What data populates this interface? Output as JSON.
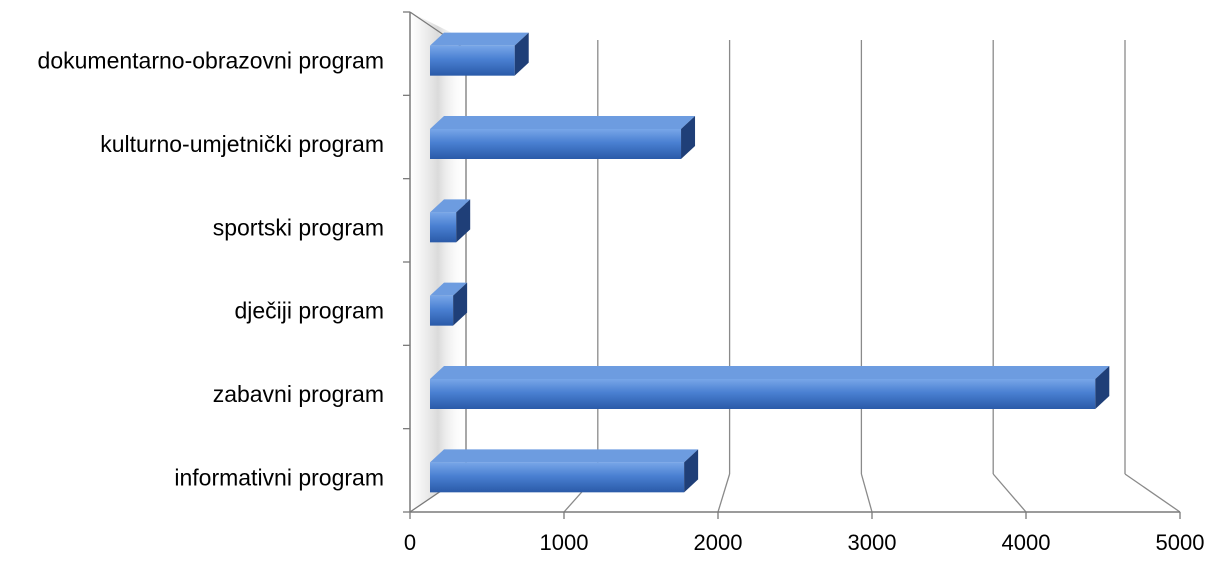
{
  "chart_data": {
    "type": "bar",
    "orientation": "horizontal",
    "style": "3d",
    "categories": [
      "informativni program",
      "zabavni program",
      "dječiji program",
      "sportski program",
      "kulturno-umjetnički program",
      "dokumentarno-obrazovni program"
    ],
    "values": [
      1780,
      4450,
      280,
      300,
      1760,
      680
    ],
    "xlim": [
      0,
      5000
    ],
    "x_ticks": [
      "0",
      "1000",
      "2000",
      "3000",
      "4000",
      "5000"
    ],
    "grid": true,
    "legend": "none",
    "bar_color": "#3d72c4",
    "bar_shade_color": "#1f3f78",
    "bar_top_color": "#6d9ce0"
  }
}
